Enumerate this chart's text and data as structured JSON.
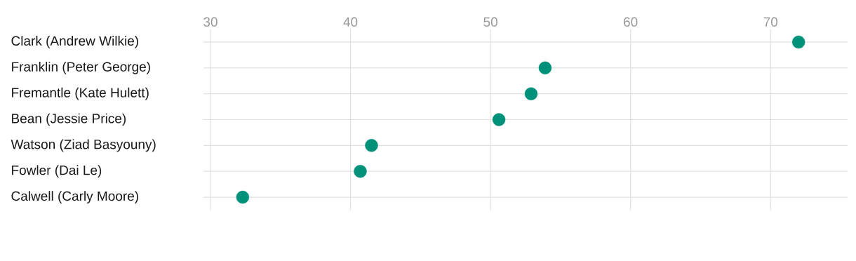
{
  "chart_data": {
    "type": "scatter",
    "orientation": "horizontal",
    "categories": [
      "Clark (Andrew Wilkie)",
      "Franklin (Peter George)",
      "Fremantle (Kate Hulett)",
      "Bean (Jessie Price)",
      "Watson (Ziad Basyouny)",
      "Fowler (Dai Le)",
      "Calwell (Carly Moore)"
    ],
    "values": [
      72.0,
      53.9,
      52.9,
      50.6,
      41.5,
      40.7,
      32.3
    ],
    "color": "#00917a",
    "xlim": [
      29.5,
      75.5
    ],
    "xticks": [
      30,
      40,
      50,
      60,
      70
    ],
    "grid": true
  }
}
